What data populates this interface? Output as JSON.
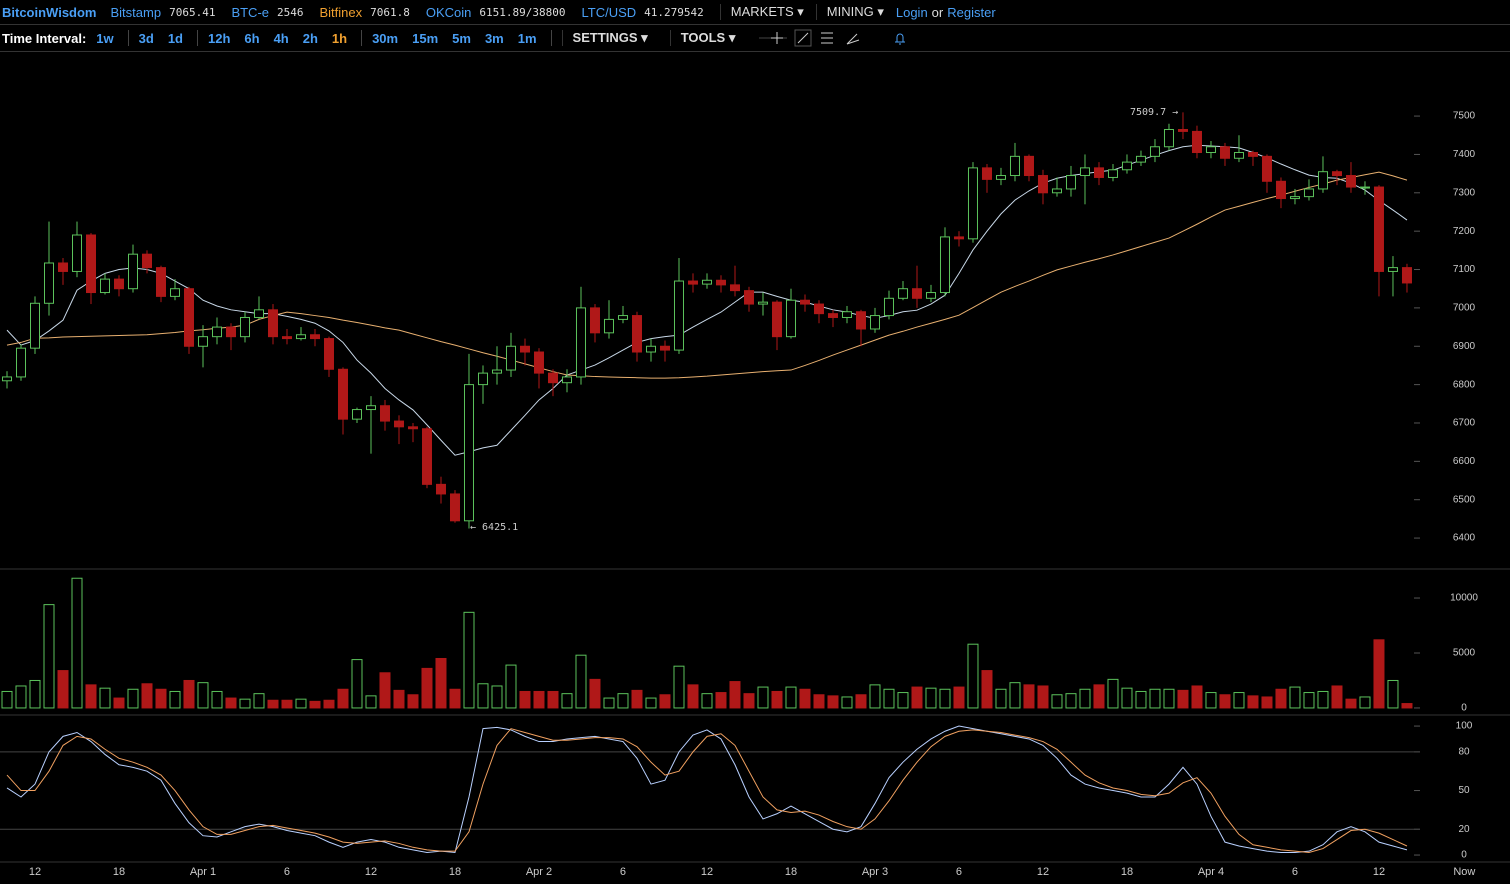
{
  "header": {
    "brand": "BitcoinWisdom",
    "tickers": [
      {
        "name": "Bitstamp",
        "price": "7065.41",
        "color": "#4a9ff5"
      },
      {
        "name": "BTC-e",
        "price": "2546",
        "color": "#4a9ff5"
      },
      {
        "name": "Bitfinex",
        "price": "7061.8",
        "color": "#f0a030"
      },
      {
        "name": "OKCoin",
        "price": "6151.89/38800",
        "color": "#4a9ff5"
      },
      {
        "name": "LTC/USD",
        "price": "41.279542",
        "color": "#4a9ff5"
      }
    ],
    "menus": [
      "MARKETS",
      "MINING"
    ],
    "login": "Login",
    "or": "or",
    "register": "Register"
  },
  "toolbar": {
    "label": "Time Interval:",
    "intervals": [
      [
        "1w"
      ],
      [
        "3d",
        "1d"
      ],
      [
        "12h",
        "6h",
        "4h",
        "2h",
        {
          "label": "1h",
          "active": true
        }
      ],
      [
        "30m",
        "15m",
        "5m",
        "3m",
        "1m"
      ]
    ],
    "settings": "SETTINGS",
    "tools": "TOOLS"
  },
  "chart_data": [
    {
      "type": "candlestick",
      "up_color": "#5cc25c",
      "down_color": "#b01818",
      "open": [
        6810,
        6820,
        6895,
        7012,
        7117,
        7095,
        7190,
        7040,
        7075,
        7050,
        7140,
        7105,
        7030,
        7050,
        6900,
        6925,
        6950,
        6925,
        6975,
        6995,
        6925,
        6920,
        6930,
        6920,
        6840,
        6710,
        6735,
        6745,
        6705,
        6690,
        6685,
        6540,
        6515,
        6445,
        6800,
        6830,
        6838,
        6900,
        6885,
        6830,
        6805,
        6820,
        7000,
        6935,
        6970,
        6980,
        6885,
        6900,
        6890,
        7070,
        7062,
        7072,
        7060,
        7045,
        7010,
        7015,
        6925,
        7020,
        7010,
        6985,
        6975,
        6990,
        6945,
        6980,
        7025,
        7050,
        7025,
        7040,
        7185,
        7180,
        7365,
        7335,
        7345,
        7395,
        7345,
        7300,
        7310,
        7345,
        7365,
        7340,
        7360,
        7380,
        7395,
        7420,
        7465,
        7460,
        7405,
        7420,
        7390,
        7405,
        7395,
        7330,
        7285,
        7290,
        7310,
        7355,
        7345,
        7315,
        7315,
        7095,
        7105
      ],
      "high": [
        6835,
        6905,
        7030,
        7225,
        7130,
        7225,
        7195,
        7090,
        7085,
        7165,
        7150,
        7110,
        7075,
        7055,
        6955,
        6975,
        6960,
        6990,
        7030,
        7010,
        6945,
        6950,
        6945,
        6925,
        6845,
        6740,
        6770,
        6760,
        6720,
        6700,
        6690,
        6560,
        6525,
        6880,
        6850,
        6900,
        6935,
        6920,
        6895,
        6840,
        6840,
        7055,
        7010,
        7020,
        7005,
        6990,
        6920,
        6915,
        7130,
        7090,
        7090,
        7085,
        7110,
        7055,
        7040,
        7020,
        7050,
        7035,
        7020,
        6995,
        7005,
        6995,
        7000,
        7045,
        7070,
        7110,
        7060,
        7210,
        7200,
        7380,
        7375,
        7365,
        7430,
        7400,
        7360,
        7340,
        7370,
        7400,
        7380,
        7375,
        7400,
        7410,
        7440,
        7480,
        7509.7,
        7475,
        7435,
        7430,
        7450,
        7410,
        7400,
        7340,
        7310,
        7335,
        7395,
        7360,
        7380,
        7330,
        7320,
        7135,
        7115
      ],
      "low": [
        6790,
        6810,
        6880,
        6980,
        7060,
        7080,
        7010,
        7035,
        7030,
        7040,
        7090,
        7015,
        7020,
        6880,
        6845,
        6905,
        6890,
        6910,
        6970,
        6905,
        6905,
        6915,
        6900,
        6820,
        6670,
        6700,
        6620,
        6680,
        6645,
        6650,
        6530,
        6490,
        6440,
        6425.1,
        6750,
        6800,
        6820,
        6850,
        6790,
        6770,
        6780,
        6800,
        6910,
        6920,
        6960,
        6860,
        6860,
        6860,
        6880,
        7040,
        7050,
        7040,
        7030,
        6990,
        6980,
        6890,
        6920,
        6990,
        6960,
        6950,
        6960,
        6900,
        6935,
        6970,
        7020,
        7000,
        7015,
        7030,
        7160,
        7170,
        7300,
        7320,
        7330,
        7330,
        7270,
        7290,
        7290,
        7270,
        7320,
        7330,
        7350,
        7370,
        7380,
        7410,
        7440,
        7390,
        7390,
        7370,
        7380,
        7370,
        7300,
        7260,
        7270,
        7280,
        7300,
        7320,
        7300,
        7295,
        7030,
        7030,
        7040
      ],
      "close": [
        6820,
        6895,
        7012,
        7117,
        7095,
        7190,
        7040,
        7075,
        7050,
        7140,
        7105,
        7030,
        7050,
        6900,
        6925,
        6950,
        6925,
        6975,
        6995,
        6925,
        6920,
        6930,
        6920,
        6840,
        6710,
        6735,
        6745,
        6705,
        6690,
        6685,
        6540,
        6515,
        6445,
        6800,
        6830,
        6838,
        6900,
        6885,
        6830,
        6805,
        6820,
        7000,
        6935,
        6970,
        6980,
        6885,
        6900,
        6890,
        7070,
        7062,
        7072,
        7060,
        7045,
        7010,
        7015,
        6925,
        7020,
        7010,
        6985,
        6975,
        6990,
        6945,
        6980,
        7025,
        7050,
        7025,
        7040,
        7185,
        7180,
        7365,
        7335,
        7345,
        7395,
        7345,
        7300,
        7310,
        7345,
        7365,
        7340,
        7360,
        7380,
        7395,
        7420,
        7465,
        7460,
        7405,
        7420,
        7390,
        7405,
        7395,
        7330,
        7285,
        7290,
        7310,
        7355,
        7345,
        7315,
        7315,
        7095,
        7105,
        7065
      ],
      "lines": [
        {
          "color": "#c8d8e8",
          "values": [
            6942,
            6903,
            6915,
            6940,
            6968,
            7046,
            7070,
            7090,
            7100,
            7104,
            7100,
            7090,
            7070,
            7050,
            7020,
            7005,
            6995,
            6990,
            6985,
            6985,
            6978,
            6970,
            6960,
            6940,
            6910,
            6864,
            6830,
            6790,
            6760,
            6734,
            6695,
            6655,
            6616,
            6625,
            6635,
            6642,
            6681,
            6720,
            6760,
            6790,
            6825,
            6838,
            6851,
            6870,
            6890,
            6910,
            6920,
            6925,
            6929,
            6950,
            6970,
            6989,
            7015,
            7041,
            7041,
            7030,
            7020,
            7015,
            7005,
            6995,
            6989,
            6980,
            6973,
            6980,
            6990,
            6994,
            7010,
            7033,
            7090,
            7151,
            7200,
            7245,
            7281,
            7305,
            7325,
            7338,
            7345,
            7350,
            7355,
            7359,
            7372,
            7385,
            7398,
            7410,
            7420,
            7424,
            7422,
            7420,
            7417,
            7405,
            7391,
            7375,
            7360,
            7346,
            7340,
            7338,
            7325,
            7307,
            7280,
            7255,
            7229
          ]
        },
        {
          "color": "#e8b070",
          "values": [
            6903,
            6910,
            6921,
            6922,
            6924,
            6925,
            6926,
            6927,
            6928,
            6929,
            6930,
            6933,
            6936,
            6940,
            6943,
            6947,
            6950,
            6955,
            6970,
            6980,
            6989,
            6985,
            6980,
            6975,
            6968,
            6962,
            6955,
            6948,
            6942,
            6932,
            6922,
            6912,
            6903,
            6893,
            6883,
            6874,
            6864,
            6854,
            6844,
            6834,
            6825,
            6823,
            6821,
            6820,
            6819,
            6818,
            6817,
            6817,
            6818,
            6820,
            6822,
            6825,
            6828,
            6831,
            6834,
            6836,
            6838,
            6850,
            6863,
            6877,
            6890,
            6903,
            6916,
            6929,
            6939,
            6950,
            6960,
            6970,
            6981,
            7001,
            7021,
            7041,
            7056,
            7070,
            7085,
            7099,
            7109,
            7119,
            7128,
            7138,
            7149,
            7160,
            7171,
            7182,
            7200,
            7218,
            7237,
            7255,
            7265,
            7275,
            7285,
            7294,
            7304,
            7314,
            7323,
            7333,
            7340,
            7347,
            7354,
            7344,
            7333
          ]
        }
      ],
      "ylim": [
        6322,
        7667
      ],
      "yticks": [
        6400,
        6500,
        6600,
        6700,
        6800,
        6900,
        7000,
        7100,
        7200,
        7300,
        7400,
        7500
      ],
      "annotations": [
        "7509.7 →",
        "← 6425.1"
      ]
    },
    {
      "type": "bar",
      "values": [
        1500,
        2000,
        2500,
        9400,
        3400,
        11800,
        2100,
        1800,
        900,
        1700,
        2200,
        1700,
        1500,
        2500,
        2300,
        1500,
        900,
        800,
        1300,
        700,
        700,
        800,
        600,
        700,
        1700,
        4400,
        1100,
        3200,
        1600,
        1200,
        3600,
        4500,
        1700,
        8700,
        2200,
        2000,
        3900,
        1500,
        1500,
        1500,
        1300,
        4800,
        2600,
        900,
        1300,
        1600,
        900,
        1200,
        3800,
        2100,
        1300,
        1400,
        2400,
        1300,
        1900,
        1500,
        1900,
        1700,
        1200,
        1100,
        1000,
        1200,
        2100,
        1700,
        1400,
        1900,
        1800,
        1700,
        1900,
        5800,
        3400,
        1700,
        2300,
        2100,
        2000,
        1200,
        1300,
        1700,
        2100,
        2600,
        1800,
        1500,
        1700,
        1700,
        1600,
        2000,
        1400,
        1200,
        1400,
        1100,
        1000,
        1700,
        1900,
        1400,
        1500,
        2000,
        800,
        1000,
        6200,
        2500,
        400
      ],
      "ylim": [
        -550,
        12550
      ],
      "yticks": [
        0,
        5000,
        10000
      ]
    },
    {
      "type": "line",
      "series": [
        {
          "color": "#b8d0ff",
          "values": [
            52,
            45,
            55,
            80,
            92,
            95,
            88,
            78,
            70,
            68,
            65,
            58,
            40,
            25,
            15,
            14,
            18,
            22,
            24,
            22,
            19,
            17,
            15,
            10,
            6,
            10,
            12,
            10,
            6,
            4,
            2,
            3,
            2,
            45,
            98,
            99,
            97,
            92,
            88,
            88,
            90,
            91,
            92,
            90,
            88,
            75,
            55,
            58,
            80,
            93,
            97,
            90,
            70,
            45,
            28,
            32,
            38,
            32,
            26,
            20,
            18,
            22,
            40,
            60,
            72,
            82,
            90,
            96,
            100,
            98,
            96,
            94,
            92,
            90,
            85,
            75,
            62,
            55,
            52,
            50,
            48,
            45,
            45,
            55,
            68,
            55,
            30,
            10,
            7,
            5,
            3,
            2,
            2,
            3,
            8,
            18,
            22,
            18,
            10,
            7,
            4
          ]
        },
        {
          "color": "#f0a060",
          "values": [
            62,
            50,
            50,
            65,
            85,
            92,
            90,
            82,
            75,
            72,
            68,
            62,
            50,
            35,
            22,
            16,
            16,
            19,
            22,
            23,
            21,
            19,
            17,
            14,
            10,
            9,
            10,
            11,
            9,
            6,
            4,
            3,
            3,
            18,
            55,
            85,
            98,
            95,
            92,
            89,
            89,
            90,
            91,
            91,
            90,
            84,
            72,
            62,
            65,
            80,
            92,
            94,
            85,
            65,
            45,
            35,
            33,
            34,
            31,
            26,
            22,
            20,
            28,
            42,
            58,
            72,
            84,
            92,
            96,
            97,
            96,
            95,
            93,
            91,
            88,
            82,
            72,
            62,
            56,
            52,
            50,
            47,
            46,
            48,
            56,
            60,
            48,
            30,
            16,
            8,
            6,
            4,
            3,
            2,
            5,
            12,
            19,
            20,
            17,
            12,
            7
          ]
        }
      ],
      "ylim": [
        -5.4,
        107.8
      ],
      "yticks": [
        0,
        20,
        50,
        80,
        100
      ],
      "grid_lines": [
        20,
        80
      ],
      "xlim": [
        -0.5,
        100.93
      ],
      "xticks": [
        {
          "value": 2,
          "label": "12"
        },
        {
          "value": 8,
          "label": "18"
        },
        {
          "value": 14,
          "label": "Apr 1"
        },
        {
          "value": 20,
          "label": "6"
        },
        {
          "value": 26,
          "label": "12"
        },
        {
          "value": 32,
          "label": "18"
        },
        {
          "value": 38,
          "label": "Apr 2"
        },
        {
          "value": 44,
          "label": "6"
        },
        {
          "value": 50,
          "label": "12"
        },
        {
          "value": 56,
          "label": "18"
        },
        {
          "value": 62,
          "label": "Apr 3"
        },
        {
          "value": 68,
          "label": "6"
        },
        {
          "value": 74,
          "label": "12"
        },
        {
          "value": 80,
          "label": "18"
        },
        {
          "value": 86,
          "label": "Apr 4"
        },
        {
          "value": 92,
          "label": "6"
        },
        {
          "value": 98,
          "label": "12"
        },
        {
          "value": 104.1,
          "label": "Now"
        }
      ]
    }
  ]
}
